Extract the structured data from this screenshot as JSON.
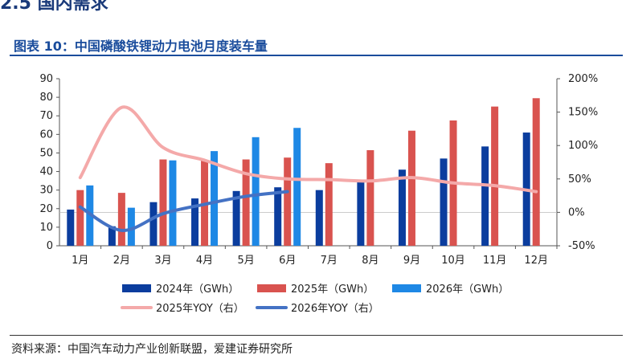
{
  "header": {
    "section_heading": "2.5  国内需求",
    "chart_title": "图表 10：中国磷酸铁锂动力电池月度装车量"
  },
  "footer": {
    "source": "资料来源：中国汽车动力产业创新联盟，爱建证券研究所"
  },
  "colors": {
    "s2024": "#0b3d9e",
    "s2025": "#d9534f",
    "s2026": "#1e88e5",
    "yoy2025": "#f4a9a9",
    "yoy2026": "#4472c4"
  },
  "chart_data": {
    "type": "bar",
    "categories": [
      "1月",
      "2月",
      "3月",
      "4月",
      "5月",
      "6月",
      "7月",
      "8月",
      "9月",
      "10月",
      "11月",
      "12月"
    ],
    "y_left": {
      "min": 0,
      "max": 90,
      "ticks": [
        "0",
        "10",
        "20",
        "30",
        "40",
        "50",
        "60",
        "70",
        "80",
        "90"
      ]
    },
    "y_right": {
      "min": -50,
      "max": 200,
      "ticks": [
        "-50%",
        "0%",
        "50%",
        "100%",
        "150%",
        "200%"
      ]
    },
    "series": [
      {
        "name": "2024年（GWh）",
        "kind": "bar",
        "axis": "left",
        "values": [
          19.5,
          10.5,
          23.5,
          25.5,
          29.5,
          31.5,
          30,
          34.5,
          41,
          47,
          53.5,
          61
        ]
      },
      {
        "name": "2025年（GWh）",
        "kind": "bar",
        "axis": "left",
        "values": [
          30,
          28.5,
          46.5,
          46,
          46.5,
          47.5,
          44.5,
          51.5,
          62,
          67.5,
          75,
          79.5
        ]
      },
      {
        "name": "2026年（GWh）",
        "kind": "bar",
        "axis": "left",
        "values": [
          32.5,
          20.5,
          46,
          51,
          58.5,
          63.5,
          null,
          null,
          null,
          null,
          null,
          null
        ]
      },
      {
        "name": "2025年YOY（右）",
        "kind": "line",
        "axis": "right",
        "values": [
          52,
          157,
          97,
          78,
          58,
          50,
          49,
          47,
          52,
          44,
          40,
          31
        ]
      },
      {
        "name": "2026年YOY（右）",
        "kind": "line",
        "axis": "right",
        "values": [
          8,
          -27,
          -2,
          12,
          24,
          31,
          null,
          null,
          null,
          null,
          null,
          null
        ]
      }
    ],
    "legend_position": "bottom",
    "grid": false
  }
}
